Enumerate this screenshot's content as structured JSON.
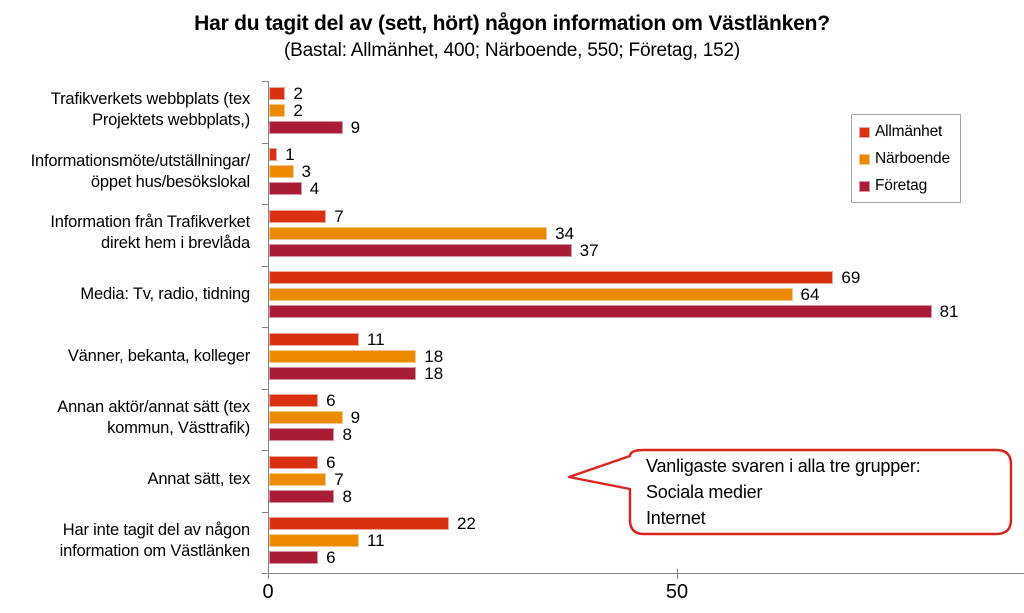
{
  "chart_data": {
    "type": "bar",
    "orientation": "horizontal",
    "title": "Har du tagit del av (sett, hört) någon information om Västlänken?",
    "subtitle": "(Bastal: Allmänhet, 400; Närboende, 550; Företag, 152)",
    "categories": [
      "Trafikverkets webbplats (tex\nProjektets webbplats,)",
      "Informationsmöte/utställningar/\nöppet hus/besökslokal",
      "Information från Trafikverket\ndirekt hem i brevlåda",
      "Media: Tv, radio, tidning",
      "Vänner, bekanta, kolleger",
      "Annan aktör/annat sätt (tex\nkommun, Västtrafik)",
      "Annat sätt, tex",
      "Har inte tagit del av någon\ninformation om Västlänken"
    ],
    "series": [
      {
        "name": "Allmänhet",
        "color": "#D93011",
        "border_color": "#EFA593",
        "values": [
          2,
          1,
          7,
          69,
          11,
          6,
          6,
          22
        ]
      },
      {
        "name": "Närboende",
        "color": "#EC8A00",
        "border_color": "#F6C788",
        "values": [
          2,
          3,
          34,
          64,
          18,
          9,
          7,
          11
        ]
      },
      {
        "name": "Företag",
        "color": "#A81D35",
        "border_color": "#D795A2",
        "values": [
          9,
          4,
          37,
          81,
          18,
          8,
          8,
          6
        ]
      }
    ],
    "value_labels": true,
    "x_ticks": [
      0,
      50
    ],
    "xlim": [
      0,
      91
    ],
    "grid": false,
    "legend_position": "upper right",
    "axis_color": "#848484"
  },
  "callout": {
    "lines": [
      "Vanligaste svaren i alla tre grupper:",
      "Sociala medier",
      "Internet"
    ],
    "border_color": "#DB241B"
  }
}
